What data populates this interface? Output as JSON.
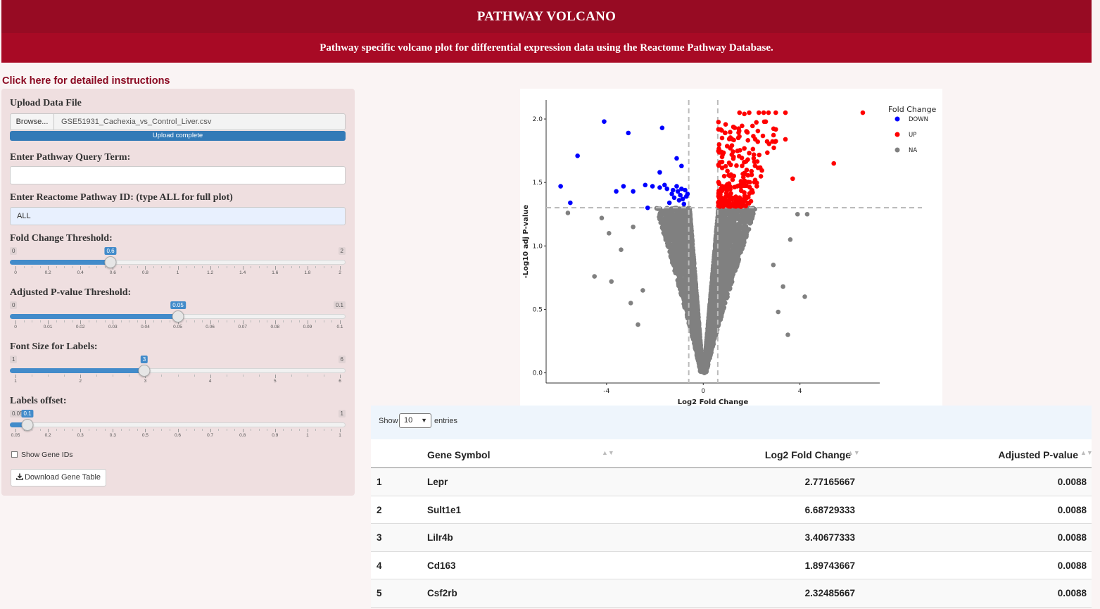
{
  "header": {
    "title": "PATHWAY VOLCANO",
    "subtitle": "Pathway specific volcano plot for differential expression data using the Reactome Pathway Database."
  },
  "instructions_link": "Click here for detailed instructions",
  "sidebar": {
    "upload": {
      "label": "Upload Data File",
      "browse_label": "Browse...",
      "file_name": "GSE51931_Cachexia_vs_Control_Liver.csv",
      "progress_text": "Upload complete",
      "progress": 1.0
    },
    "query": {
      "label": "Enter Pathway Query Term:",
      "value": ""
    },
    "pathway_id": {
      "label": "Enter Reactome Pathway ID: (type ALL for full plot)",
      "value": "ALL"
    },
    "sliders": [
      {
        "label": "Fold Change Threshold:",
        "min": "0",
        "max": "2",
        "value": "0.6",
        "frac": 0.3,
        "ticks": [
          "0",
          "0.2",
          "0.4",
          "0.6",
          "0.8",
          "1",
          "1.2",
          "1.4",
          "1.6",
          "1.8",
          "2"
        ]
      },
      {
        "label": "Adjusted P-value Threshold:",
        "min": "0",
        "max": "0.1",
        "value": "0.05",
        "frac": 0.5,
        "ticks": [
          "0",
          "0.01",
          "0.02",
          "0.03",
          "0.04",
          "0.05",
          "0.06",
          "0.07",
          "0.08",
          "0.09",
          "0.1"
        ]
      },
      {
        "label": "Font Size for Labels:",
        "min": "1",
        "max": "6",
        "value": "3",
        "frac": 0.4,
        "ticks": [
          "1",
          "2",
          "3",
          "4",
          "5",
          "6"
        ]
      },
      {
        "label": "Labels offset:",
        "min": "0.05",
        "max": "1",
        "value": "0.1",
        "frac": 0.0526,
        "ticks": [
          "0.05",
          "0.2",
          "0.3",
          "0.3",
          "0.5",
          "0.6",
          "0.7",
          "0.8",
          "0.9",
          "1",
          "1"
        ]
      }
    ],
    "show_gene_ids": {
      "label": "Show Gene IDs",
      "checked": false
    },
    "download_label": "Download Gene Table"
  },
  "chart_data": {
    "type": "scatter",
    "xlabel": "Log2 Fold Change",
    "ylabel": "-Log10 adj P-value",
    "xlim": [
      -6.5,
      7.3
    ],
    "ylim": [
      -0.08,
      2.15
    ],
    "xticks": [
      -4,
      0,
      4
    ],
    "yticks": [
      "0.0",
      "0.5",
      "1.0",
      "1.5",
      "2.0"
    ],
    "thresholds": {
      "fc": 0.6,
      "y": 1.301
    },
    "legend": {
      "title": "Fold Change",
      "position": "top-right",
      "entries": [
        "DOWN",
        "UP",
        "NA"
      ]
    },
    "colors": {
      "DOWN": "#0000ff",
      "UP": "#ff0000",
      "NA": "#808080"
    },
    "series": [
      {
        "name": "DOWN",
        "points": [
          [
            -5.9,
            1.47
          ],
          [
            -5.5,
            1.34
          ],
          [
            -5.2,
            1.71
          ],
          [
            -4.1,
            1.98
          ],
          [
            -3.1,
            1.89
          ],
          [
            -1.7,
            1.93
          ],
          [
            -1.1,
            1.69
          ],
          [
            -1.8,
            1.58
          ],
          [
            -0.9,
            1.63
          ],
          [
            -3.6,
            1.43
          ],
          [
            -3.3,
            1.47
          ],
          [
            -2.9,
            1.43
          ],
          [
            -2.4,
            1.48
          ],
          [
            -2.1,
            1.47
          ],
          [
            -1.8,
            1.46
          ],
          [
            -1.6,
            1.48
          ],
          [
            -1.5,
            1.45
          ],
          [
            -1.3,
            1.41
          ],
          [
            -1.1,
            1.47
          ],
          [
            -1.05,
            1.43
          ],
          [
            -0.95,
            1.4
          ],
          [
            -0.85,
            1.37
          ],
          [
            -0.75,
            1.44
          ],
          [
            -0.7,
            1.39
          ],
          [
            -1.2,
            1.38
          ],
          [
            -2.3,
            1.3
          ],
          [
            -1.4,
            1.34
          ],
          [
            -0.8,
            1.33
          ],
          [
            -1.0,
            1.36
          ],
          [
            -0.65,
            1.41
          ],
          [
            -1.25,
            1.44
          ],
          [
            -0.9,
            1.45
          ]
        ]
      },
      {
        "name": "UP",
        "points": [
          [
            6.6,
            2.05
          ],
          [
            5.4,
            1.65
          ],
          [
            3.7,
            1.53
          ],
          [
            3.4,
            1.84
          ],
          [
            1.5,
            2.05
          ],
          [
            1.9,
            2.05
          ],
          [
            2.3,
            2.05
          ],
          [
            2.7,
            2.05
          ],
          [
            3.0,
            2.05
          ],
          [
            3.4,
            2.05
          ],
          [
            2.5,
            2.05
          ],
          [
            1.7,
            2.04
          ]
        ]
      },
      {
        "name": "UP_cluster",
        "cluster": {
          "x_min": 0.62,
          "x_max": 3.0,
          "y_min": 1.31,
          "y_max": 2.0,
          "count": 260
        }
      },
      {
        "name": "NA",
        "volcano": {
          "count": 4200
        }
      }
    ]
  },
  "table": {
    "show_label": "Show",
    "entries_label": "entries",
    "page_size": "10",
    "columns": [
      "",
      "Gene Symbol",
      "Log2 Fold Change",
      "Adjusted P-value"
    ],
    "rows": [
      [
        "1",
        "Lepr",
        "2.77165667",
        "0.0088"
      ],
      [
        "2",
        "Sult1e1",
        "6.68729333",
        "0.0088"
      ],
      [
        "3",
        "Lilr4b",
        "3.40677333",
        "0.0088"
      ],
      [
        "4",
        "Cd163",
        "1.89743667",
        "0.0088"
      ],
      [
        "5",
        "Csf2rb",
        "2.32485667",
        "0.0088"
      ]
    ]
  }
}
